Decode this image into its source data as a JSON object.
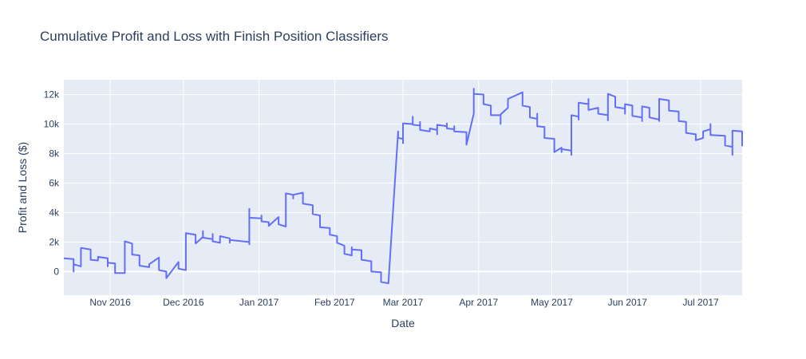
{
  "chart_data": {
    "type": "line",
    "title": "Cumulative Profit and Loss with Finish Position Classifiers",
    "xlabel": "Date",
    "ylabel": "Profit and Loss ($)",
    "xlim": [
      "2016-10-13",
      "2017-07-18"
    ],
    "ylim": [
      -1600,
      13000
    ],
    "grid": true,
    "line_color": "#636efa",
    "plot_bg": "#e5ecf6",
    "x_ticks": [
      {
        "date": "2016-11-01",
        "label": "Nov 2016"
      },
      {
        "date": "2016-12-01",
        "label": "Dec 2016"
      },
      {
        "date": "2017-01-01",
        "label": "Jan 2017"
      },
      {
        "date": "2017-02-01",
        "label": "Feb 2017"
      },
      {
        "date": "2017-03-01",
        "label": "Mar 2017"
      },
      {
        "date": "2017-04-01",
        "label": "Apr 2017"
      },
      {
        "date": "2017-05-01",
        "label": "May 2017"
      },
      {
        "date": "2017-06-01",
        "label": "Jun 2017"
      },
      {
        "date": "2017-07-01",
        "label": "Jul 2017"
      }
    ],
    "y_ticks": [
      {
        "value": 0,
        "label": "0"
      },
      {
        "value": 2000,
        "label": "2k"
      },
      {
        "value": 4000,
        "label": "4k"
      },
      {
        "value": 6000,
        "label": "6k"
      },
      {
        "value": 8000,
        "label": "8k"
      },
      {
        "value": 10000,
        "label": "10k"
      },
      {
        "value": 12000,
        "label": "12k"
      }
    ],
    "series": [
      {
        "points": [
          [
            "2016-10-13",
            900
          ],
          [
            "2016-10-17",
            850
          ],
          [
            "2016-10-17",
            0
          ],
          [
            "2016-10-17",
            500
          ],
          [
            "2016-10-20",
            350
          ],
          [
            "2016-10-20",
            1600
          ],
          [
            "2016-10-24",
            1500
          ],
          [
            "2016-10-24",
            800
          ],
          [
            "2016-10-27",
            750
          ],
          [
            "2016-10-27",
            1000
          ],
          [
            "2016-10-31",
            900
          ],
          [
            "2016-10-31",
            350
          ],
          [
            "2016-10-31",
            600
          ],
          [
            "2016-11-03",
            550
          ],
          [
            "2016-11-03",
            -100
          ],
          [
            "2016-11-07",
            -100
          ],
          [
            "2016-11-07",
            2050
          ],
          [
            "2016-11-10",
            1900
          ],
          [
            "2016-11-10",
            1150
          ],
          [
            "2016-11-13",
            1100
          ],
          [
            "2016-11-13",
            400
          ],
          [
            "2016-11-17",
            300
          ],
          [
            "2016-11-17",
            500
          ],
          [
            "2016-11-21",
            950
          ],
          [
            "2016-11-21",
            100
          ],
          [
            "2016-11-24",
            0
          ],
          [
            "2016-11-24",
            -450
          ],
          [
            "2016-11-29",
            650
          ],
          [
            "2016-11-29",
            200
          ],
          [
            "2016-12-02",
            100
          ],
          [
            "2016-12-02",
            2600
          ],
          [
            "2016-12-06",
            2500
          ],
          [
            "2016-12-06",
            1900
          ],
          [
            "2016-12-09",
            2350
          ],
          [
            "2016-12-09",
            2750
          ],
          [
            "2016-12-09",
            2300
          ],
          [
            "2016-12-13",
            2200
          ],
          [
            "2016-12-13",
            2550
          ],
          [
            "2016-12-13",
            2050
          ],
          [
            "2016-12-16",
            1950
          ],
          [
            "2016-12-16",
            2400
          ],
          [
            "2016-12-20",
            2250
          ],
          [
            "2016-12-20",
            1950
          ],
          [
            "2016-12-20",
            2150
          ],
          [
            "2016-12-28",
            2000
          ],
          [
            "2016-12-28",
            1850
          ],
          [
            "2016-12-28",
            4250
          ],
          [
            "2016-12-28",
            3650
          ],
          [
            "2017-01-02",
            3600
          ],
          [
            "2017-01-02",
            3800
          ],
          [
            "2017-01-02",
            3400
          ],
          [
            "2017-01-05",
            3350
          ],
          [
            "2017-01-05",
            3100
          ],
          [
            "2017-01-09",
            3700
          ],
          [
            "2017-01-09",
            3200
          ],
          [
            "2017-01-12",
            3050
          ],
          [
            "2017-01-12",
            5300
          ],
          [
            "2017-01-15",
            5200
          ],
          [
            "2017-01-15",
            4950
          ],
          [
            "2017-01-15",
            5200
          ],
          [
            "2017-01-19",
            5350
          ],
          [
            "2017-01-19",
            4600
          ],
          [
            "2017-01-23",
            4500
          ],
          [
            "2017-01-23",
            3900
          ],
          [
            "2017-01-26",
            3800
          ],
          [
            "2017-01-26",
            3000
          ],
          [
            "2017-01-30",
            2950
          ],
          [
            "2017-01-30",
            2500
          ],
          [
            "2017-02-02",
            2400
          ],
          [
            "2017-02-02",
            1950
          ],
          [
            "2017-02-05",
            1750
          ],
          [
            "2017-02-05",
            1200
          ],
          [
            "2017-02-08",
            1100
          ],
          [
            "2017-02-08",
            1650
          ],
          [
            "2017-02-08",
            1500
          ],
          [
            "2017-02-12",
            1450
          ],
          [
            "2017-02-12",
            800
          ],
          [
            "2017-02-16",
            700
          ],
          [
            "2017-02-16",
            0
          ],
          [
            "2017-02-20",
            -50
          ],
          [
            "2017-02-20",
            -700
          ],
          [
            "2017-02-23",
            -800
          ],
          [
            "2017-02-27",
            9500
          ],
          [
            "2017-02-27",
            9050
          ],
          [
            "2017-03-01",
            9000
          ],
          [
            "2017-03-01",
            8700
          ],
          [
            "2017-03-01",
            10050
          ],
          [
            "2017-03-05",
            10000
          ],
          [
            "2017-03-05",
            10500
          ],
          [
            "2017-03-05",
            9950
          ],
          [
            "2017-03-08",
            9900
          ],
          [
            "2017-03-08",
            10150
          ],
          [
            "2017-03-08",
            9600
          ],
          [
            "2017-03-12",
            9500
          ],
          [
            "2017-03-12",
            9700
          ],
          [
            "2017-03-15",
            9600
          ],
          [
            "2017-03-15",
            9300
          ],
          [
            "2017-03-15",
            9950
          ],
          [
            "2017-03-19",
            9850
          ],
          [
            "2017-03-19",
            10050
          ],
          [
            "2017-03-19",
            9700
          ],
          [
            "2017-03-22",
            9650
          ],
          [
            "2017-03-22",
            9850
          ],
          [
            "2017-03-22",
            9500
          ],
          [
            "2017-03-27",
            9450
          ],
          [
            "2017-03-27",
            8600
          ],
          [
            "2017-03-30",
            10700
          ],
          [
            "2017-03-30",
            12400
          ],
          [
            "2017-03-30",
            12050
          ],
          [
            "2017-04-03",
            12000
          ],
          [
            "2017-04-03",
            11350
          ],
          [
            "2017-04-06",
            11250
          ],
          [
            "2017-04-06",
            10600
          ],
          [
            "2017-04-10",
            10600
          ],
          [
            "2017-04-10",
            10000
          ],
          [
            "2017-04-10",
            10650
          ],
          [
            "2017-04-13",
            11100
          ],
          [
            "2017-04-13",
            11700
          ],
          [
            "2017-04-19",
            12150
          ],
          [
            "2017-04-19",
            11250
          ],
          [
            "2017-04-22",
            11150
          ],
          [
            "2017-04-22",
            10450
          ],
          [
            "2017-04-25",
            10350
          ],
          [
            "2017-04-25",
            10700
          ],
          [
            "2017-04-25",
            9850
          ],
          [
            "2017-04-28",
            9800
          ],
          [
            "2017-04-28",
            9050
          ],
          [
            "2017-05-02",
            9000
          ],
          [
            "2017-05-02",
            8100
          ],
          [
            "2017-05-05",
            8400
          ],
          [
            "2017-05-05",
            8100
          ],
          [
            "2017-05-05",
            8300
          ],
          [
            "2017-05-09",
            8200
          ],
          [
            "2017-05-09",
            7900
          ],
          [
            "2017-05-09",
            10600
          ],
          [
            "2017-05-12",
            10500
          ],
          [
            "2017-05-12",
            10300
          ],
          [
            "2017-05-12",
            11450
          ],
          [
            "2017-05-16",
            11350
          ],
          [
            "2017-05-16",
            11700
          ],
          [
            "2017-05-16",
            10950
          ],
          [
            "2017-05-20",
            11100
          ],
          [
            "2017-05-20",
            10700
          ],
          [
            "2017-05-24",
            10600
          ],
          [
            "2017-05-24",
            10250
          ],
          [
            "2017-05-24",
            12050
          ],
          [
            "2017-05-27",
            11850
          ],
          [
            "2017-05-27",
            11150
          ],
          [
            "2017-05-31",
            11050
          ],
          [
            "2017-05-31",
            10700
          ],
          [
            "2017-05-31",
            11350
          ],
          [
            "2017-06-03",
            11250
          ],
          [
            "2017-06-03",
            10550
          ],
          [
            "2017-06-07",
            10450
          ],
          [
            "2017-06-07",
            10200
          ],
          [
            "2017-06-07",
            11200
          ],
          [
            "2017-06-10",
            11100
          ],
          [
            "2017-06-10",
            10450
          ],
          [
            "2017-06-14",
            10300
          ],
          [
            "2017-06-14",
            10200
          ],
          [
            "2017-06-14",
            11700
          ],
          [
            "2017-06-18",
            11600
          ],
          [
            "2017-06-18",
            10900
          ],
          [
            "2017-06-22",
            10850
          ],
          [
            "2017-06-22",
            10200
          ],
          [
            "2017-06-25",
            10150
          ],
          [
            "2017-06-25",
            9400
          ],
          [
            "2017-06-29",
            9300
          ],
          [
            "2017-06-29",
            8900
          ],
          [
            "2017-07-02",
            9050
          ],
          [
            "2017-07-02",
            9500
          ],
          [
            "2017-07-05",
            9650
          ],
          [
            "2017-07-05",
            10000
          ],
          [
            "2017-07-05",
            9250
          ],
          [
            "2017-07-11",
            9200
          ],
          [
            "2017-07-11",
            8550
          ],
          [
            "2017-07-14",
            8450
          ],
          [
            "2017-07-14",
            7900
          ],
          [
            "2017-07-14",
            9550
          ],
          [
            "2017-07-18",
            9500
          ],
          [
            "2017-07-18",
            8500
          ]
        ]
      }
    ]
  }
}
